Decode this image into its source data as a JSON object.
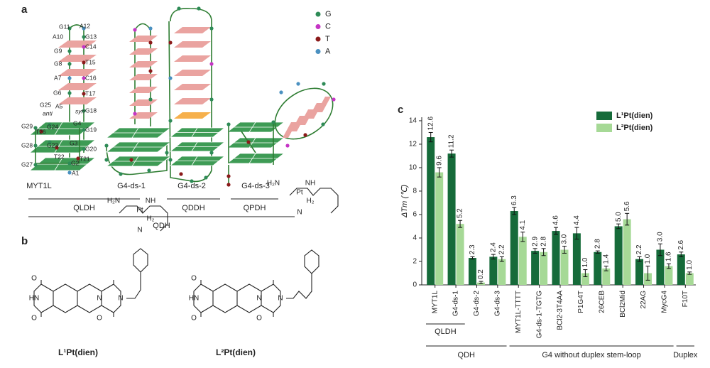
{
  "panel_labels": [
    "a",
    "b",
    "c"
  ],
  "nucleotide_legend": [
    {
      "name": "G",
      "color": "#2e8b57"
    },
    {
      "name": "C",
      "color": "#c535c5"
    },
    {
      "name": "T",
      "color": "#8b1a1a"
    },
    {
      "name": "A",
      "color": "#4a90c0"
    }
  ],
  "structures": [
    "MYT1L",
    "G4-ds-1",
    "G4-ds-2",
    "G4-ds-3"
  ],
  "structure_groups": [
    "QLDH",
    "QDDH",
    "QPDH",
    "QDH"
  ],
  "residue_labels": [
    "G11",
    "A12",
    "A10",
    "G13",
    "G9",
    "C14",
    "G8",
    "T15",
    "A7",
    "C16",
    "G6",
    "T17",
    "A5",
    "G25",
    "anti",
    "syn",
    "G18",
    "G24",
    "G29",
    "G4",
    "G19",
    "T26",
    "G3",
    "G28",
    "G23",
    "G20",
    "T22",
    "T21",
    "G27",
    "G2",
    "A1"
  ],
  "compounds": [
    {
      "name": "L¹Pt(dien)",
      "atoms": [
        "O",
        "HN",
        "O",
        "N",
        "O",
        "H₂N",
        "NH",
        "Pt",
        "N",
        "N",
        "H₂"
      ]
    },
    {
      "name": "L²Pt(dien)",
      "atoms": [
        "O",
        "HN",
        "O",
        "N",
        "O",
        "H₂N",
        "NH",
        "Pt",
        "N",
        "N",
        "H₂"
      ]
    }
  ],
  "chart_data": {
    "type": "bar",
    "y_label": "ΔTm (℃)",
    "categories": [
      "MYT1L",
      "G4-ds-1",
      "G4-ds-2",
      "G4-ds-3",
      "MYT1L-TTTT",
      "G4-ds-1-TGTG",
      "BCl2-3T4AA",
      "P1G4T",
      "26CEB",
      "BCl2Mid",
      "22AG",
      "MycG4",
      "F10T"
    ],
    "series": [
      {
        "name": "L¹Pt(dien)",
        "color": "#166b3a",
        "values": [
          12.6,
          11.2,
          2.3,
          2.4,
          6.3,
          2.9,
          4.6,
          4.4,
          2.8,
          5.0,
          2.2,
          3.0,
          2.6
        ],
        "value_labels": [
          "12.6",
          "11.2",
          "2.3",
          "2.4",
          "6.3",
          "2.9",
          "4.6",
          "4.4",
          "2.8",
          "5.0",
          "2.2",
          "3.0",
          "2.6"
        ],
        "errors": [
          0.4,
          0.3,
          0.1,
          0.2,
          0.3,
          0.2,
          0.3,
          0.5,
          0.1,
          0.2,
          0.2,
          0.5,
          0.2
        ]
      },
      {
        "name": "L²Pt(dien)",
        "color": "#a6d996",
        "values": [
          9.6,
          5.2,
          0.2,
          2.2,
          4.1,
          2.8,
          3.0,
          1.0,
          1.4,
          5.6,
          1.0,
          1.6,
          1.0
        ],
        "value_labels": [
          "9.6",
          "5.2",
          "0.2",
          "2.2",
          "4.1",
          "2.8",
          "3.0",
          "1.0",
          "1.4",
          "5.6",
          "1.0",
          "1.6",
          "1.0"
        ],
        "errors": [
          0.4,
          0.3,
          0.1,
          0.2,
          0.4,
          0.3,
          0.3,
          0.3,
          0.2,
          0.5,
          0.6,
          0.2,
          0.1
        ]
      }
    ],
    "ylim": [
      0,
      14.3
    ],
    "yticks": [
      0,
      2,
      4,
      6,
      8,
      10,
      12,
      14
    ],
    "legend": "upper right",
    "category_groups": [
      {
        "name": "QLDH",
        "categories": [
          "MYT1L",
          "G4-ds-1"
        ]
      },
      {
        "name": "QDH",
        "categories": [
          "MYT1L",
          "G4-ds-1",
          "G4-ds-2",
          "G4-ds-3"
        ]
      },
      {
        "name": "G4 without duplex stem-loop",
        "categories": [
          "MYT1L-TTTT",
          "G4-ds-1-TGTG",
          "BCl2-3T4AA",
          "P1G4T",
          "26CEB",
          "BCl2Mid",
          "22AG",
          "MycG4"
        ]
      },
      {
        "name": "Duplex",
        "categories": [
          "F10T"
        ]
      }
    ]
  }
}
